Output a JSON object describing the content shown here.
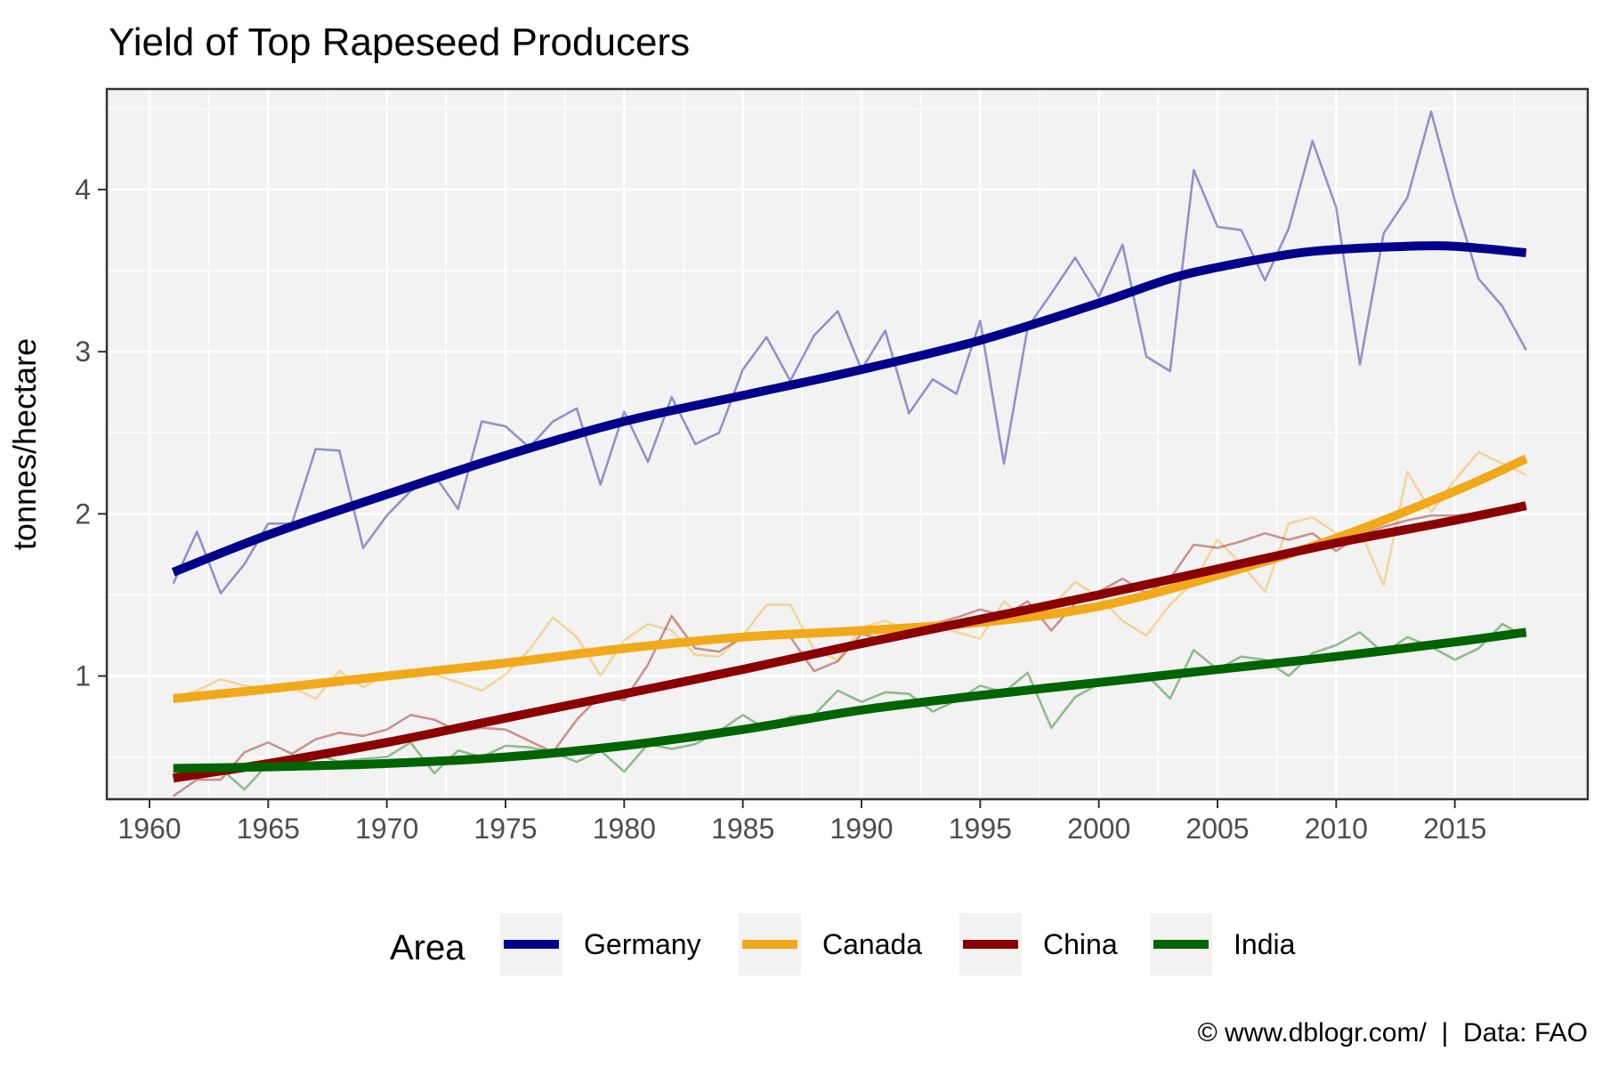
{
  "chart_data": {
    "type": "line",
    "title": "Yield of Top Rapeseed Producers",
    "ylabel": "tonnes/hectare",
    "xlabel": "",
    "xlim": [
      1958.2,
      2020.6
    ],
    "ylim": [
      0.24,
      4.62
    ],
    "x_ticks": [
      1960,
      1965,
      1970,
      1975,
      1980,
      1985,
      1990,
      1995,
      2000,
      2005,
      2010,
      2015
    ],
    "y_ticks": [
      1,
      2,
      3,
      4
    ],
    "grid": true,
    "legend": {
      "title": "Area",
      "position": "bottom"
    },
    "caption": "© www.dblogr.com/  |  Data: FAO",
    "series": [
      {
        "name": "Germany",
        "color": "#00008B",
        "raw": [
          [
            1961,
            1.57
          ],
          [
            1962,
            1.89
          ],
          [
            1963,
            1.51
          ],
          [
            1964,
            1.69
          ],
          [
            1965,
            1.94
          ],
          [
            1966,
            1.94
          ],
          [
            1967,
            2.4
          ],
          [
            1968,
            2.39
          ],
          [
            1969,
            1.79
          ],
          [
            1970,
            1.99
          ],
          [
            1971,
            2.14
          ],
          [
            1972,
            2.24
          ],
          [
            1973,
            2.03
          ],
          [
            1974,
            2.57
          ],
          [
            1975,
            2.54
          ],
          [
            1976,
            2.41
          ],
          [
            1977,
            2.57
          ],
          [
            1978,
            2.65
          ],
          [
            1979,
            2.18
          ],
          [
            1980,
            2.63
          ],
          [
            1981,
            2.32
          ],
          [
            1982,
            2.72
          ],
          [
            1983,
            2.43
          ],
          [
            1984,
            2.5
          ],
          [
            1985,
            2.89
          ],
          [
            1986,
            3.09
          ],
          [
            1987,
            2.82
          ],
          [
            1988,
            3.1
          ],
          [
            1989,
            3.25
          ],
          [
            1990,
            2.89
          ],
          [
            1991,
            3.13
          ],
          [
            1992,
            2.62
          ],
          [
            1993,
            2.83
          ],
          [
            1994,
            2.74
          ],
          [
            1995,
            3.19
          ],
          [
            1996,
            2.31
          ],
          [
            1997,
            3.15
          ],
          [
            1998,
            3.36
          ],
          [
            1999,
            3.58
          ],
          [
            2000,
            3.34
          ],
          [
            2001,
            3.66
          ],
          [
            2002,
            2.97
          ],
          [
            2003,
            2.88
          ],
          [
            2004,
            4.12
          ],
          [
            2005,
            3.77
          ],
          [
            2006,
            3.75
          ],
          [
            2007,
            3.44
          ],
          [
            2008,
            3.76
          ],
          [
            2009,
            4.3
          ],
          [
            2010,
            3.89
          ],
          [
            2011,
            2.92
          ],
          [
            2012,
            3.73
          ],
          [
            2013,
            3.95
          ],
          [
            2014,
            4.48
          ],
          [
            2015,
            3.93
          ],
          [
            2016,
            3.45
          ],
          [
            2017,
            3.28
          ],
          [
            2018,
            3.01
          ]
        ],
        "smooth": [
          [
            1961,
            1.64
          ],
          [
            1965,
            1.87
          ],
          [
            1970,
            2.12
          ],
          [
            1975,
            2.36
          ],
          [
            1980,
            2.57
          ],
          [
            1985,
            2.73
          ],
          [
            1990,
            2.89
          ],
          [
            1995,
            3.07
          ],
          [
            2000,
            3.3
          ],
          [
            2003,
            3.45
          ],
          [
            2005,
            3.52
          ],
          [
            2008,
            3.6
          ],
          [
            2010,
            3.63
          ],
          [
            2013,
            3.65
          ],
          [
            2015,
            3.65
          ],
          [
            2018,
            3.61
          ]
        ]
      },
      {
        "name": "Canada",
        "color": "#F1A91A",
        "raw": [
          [
            1961,
            0.86
          ],
          [
            1962,
            0.91
          ],
          [
            1963,
            0.98
          ],
          [
            1964,
            0.94
          ],
          [
            1965,
            0.92
          ],
          [
            1966,
            0.93
          ],
          [
            1967,
            0.86
          ],
          [
            1968,
            1.03
          ],
          [
            1969,
            0.93
          ],
          [
            1970,
            1.01
          ],
          [
            1971,
            1.03
          ],
          [
            1972,
            1.01
          ],
          [
            1973,
            0.96
          ],
          [
            1974,
            0.91
          ],
          [
            1975,
            1.01
          ],
          [
            1976,
            1.16
          ],
          [
            1977,
            1.36
          ],
          [
            1978,
            1.24
          ],
          [
            1979,
            1.0
          ],
          [
            1980,
            1.22
          ],
          [
            1981,
            1.32
          ],
          [
            1982,
            1.28
          ],
          [
            1983,
            1.13
          ],
          [
            1984,
            1.12
          ],
          [
            1985,
            1.25
          ],
          [
            1986,
            1.44
          ],
          [
            1987,
            1.44
          ],
          [
            1988,
            1.16
          ],
          [
            1989,
            1.1
          ],
          [
            1990,
            1.3
          ],
          [
            1991,
            1.34
          ],
          [
            1992,
            1.28
          ],
          [
            1993,
            1.32
          ],
          [
            1994,
            1.27
          ],
          [
            1995,
            1.23
          ],
          [
            1996,
            1.46
          ],
          [
            1997,
            1.34
          ],
          [
            1998,
            1.43
          ],
          [
            1999,
            1.58
          ],
          [
            2000,
            1.49
          ],
          [
            2001,
            1.34
          ],
          [
            2002,
            1.25
          ],
          [
            2003,
            1.44
          ],
          [
            2004,
            1.58
          ],
          [
            2005,
            1.84
          ],
          [
            2006,
            1.69
          ],
          [
            2007,
            1.52
          ],
          [
            2008,
            1.94
          ],
          [
            2009,
            1.98
          ],
          [
            2010,
            1.88
          ],
          [
            2011,
            1.9
          ],
          [
            2012,
            1.56
          ],
          [
            2013,
            2.26
          ],
          [
            2014,
            2.01
          ],
          [
            2015,
            2.21
          ],
          [
            2016,
            2.38
          ],
          [
            2017,
            2.31
          ],
          [
            2018,
            2.24
          ]
        ],
        "smooth": [
          [
            1961,
            0.86
          ],
          [
            1965,
            0.92
          ],
          [
            1970,
            1.0
          ],
          [
            1975,
            1.08
          ],
          [
            1980,
            1.17
          ],
          [
            1985,
            1.24
          ],
          [
            1990,
            1.28
          ],
          [
            1995,
            1.33
          ],
          [
            2000,
            1.43
          ],
          [
            2005,
            1.62
          ],
          [
            2010,
            1.85
          ],
          [
            2015,
            2.14
          ],
          [
            2018,
            2.34
          ]
        ]
      },
      {
        "name": "China",
        "color": "#8B0000",
        "raw": [
          [
            1961,
            0.26
          ],
          [
            1962,
            0.36
          ],
          [
            1963,
            0.36
          ],
          [
            1964,
            0.53
          ],
          [
            1965,
            0.59
          ],
          [
            1966,
            0.52
          ],
          [
            1967,
            0.61
          ],
          [
            1968,
            0.65
          ],
          [
            1969,
            0.63
          ],
          [
            1970,
            0.67
          ],
          [
            1971,
            0.76
          ],
          [
            1972,
            0.73
          ],
          [
            1973,
            0.66
          ],
          [
            1974,
            0.68
          ],
          [
            1975,
            0.67
          ],
          [
            1976,
            0.6
          ],
          [
            1977,
            0.53
          ],
          [
            1978,
            0.73
          ],
          [
            1979,
            0.88
          ],
          [
            1980,
            0.85
          ],
          [
            1981,
            1.07
          ],
          [
            1982,
            1.37
          ],
          [
            1983,
            1.17
          ],
          [
            1984,
            1.15
          ],
          [
            1985,
            1.24
          ],
          [
            1986,
            1.27
          ],
          [
            1987,
            1.24
          ],
          [
            1988,
            1.03
          ],
          [
            1989,
            1.09
          ],
          [
            1990,
            1.26
          ],
          [
            1991,
            1.22
          ],
          [
            1992,
            1.27
          ],
          [
            1993,
            1.32
          ],
          [
            1994,
            1.36
          ],
          [
            1995,
            1.41
          ],
          [
            1996,
            1.37
          ],
          [
            1997,
            1.46
          ],
          [
            1998,
            1.28
          ],
          [
            1999,
            1.45
          ],
          [
            2000,
            1.52
          ],
          [
            2001,
            1.6
          ],
          [
            2002,
            1.51
          ],
          [
            2003,
            1.6
          ],
          [
            2004,
            1.81
          ],
          [
            2005,
            1.79
          ],
          [
            2006,
            1.83
          ],
          [
            2007,
            1.88
          ],
          [
            2008,
            1.84
          ],
          [
            2009,
            1.88
          ],
          [
            2010,
            1.77
          ],
          [
            2011,
            1.87
          ],
          [
            2012,
            1.92
          ],
          [
            2013,
            1.96
          ],
          [
            2014,
            1.99
          ],
          [
            2015,
            1.99
          ],
          [
            2016,
            2.0
          ],
          [
            2017,
            2.03
          ],
          [
            2018,
            2.03
          ]
        ],
        "smooth": [
          [
            1961,
            0.37
          ],
          [
            1965,
            0.46
          ],
          [
            1970,
            0.59
          ],
          [
            1975,
            0.74
          ],
          [
            1980,
            0.89
          ],
          [
            1985,
            1.04
          ],
          [
            1990,
            1.2
          ],
          [
            1995,
            1.35
          ],
          [
            2000,
            1.5
          ],
          [
            2005,
            1.66
          ],
          [
            2010,
            1.82
          ],
          [
            2015,
            1.96
          ],
          [
            2018,
            2.05
          ]
        ]
      },
      {
        "name": "India",
        "color": "#006400",
        "raw": [
          [
            1961,
            0.42
          ],
          [
            1962,
            0.4
          ],
          [
            1963,
            0.43
          ],
          [
            1964,
            0.3
          ],
          [
            1965,
            0.46
          ],
          [
            1966,
            0.48
          ],
          [
            1967,
            0.52
          ],
          [
            1968,
            0.47
          ],
          [
            1969,
            0.49
          ],
          [
            1970,
            0.5
          ],
          [
            1971,
            0.59
          ],
          [
            1972,
            0.4
          ],
          [
            1973,
            0.54
          ],
          [
            1974,
            0.5
          ],
          [
            1975,
            0.57
          ],
          [
            1976,
            0.56
          ],
          [
            1977,
            0.53
          ],
          [
            1978,
            0.47
          ],
          [
            1979,
            0.54
          ],
          [
            1980,
            0.41
          ],
          [
            1981,
            0.58
          ],
          [
            1982,
            0.55
          ],
          [
            1983,
            0.58
          ],
          [
            1984,
            0.66
          ],
          [
            1985,
            0.76
          ],
          [
            1986,
            0.67
          ],
          [
            1987,
            0.75
          ],
          [
            1988,
            0.76
          ],
          [
            1989,
            0.91
          ],
          [
            1990,
            0.84
          ],
          [
            1991,
            0.9
          ],
          [
            1992,
            0.89
          ],
          [
            1993,
            0.78
          ],
          [
            1994,
            0.85
          ],
          [
            1995,
            0.94
          ],
          [
            1996,
            0.9
          ],
          [
            1997,
            1.02
          ],
          [
            1998,
            0.68
          ],
          [
            1999,
            0.87
          ],
          [
            2000,
            0.95
          ],
          [
            2001,
            0.98
          ],
          [
            2002,
            1.01
          ],
          [
            2003,
            0.86
          ],
          [
            2004,
            1.16
          ],
          [
            2005,
            1.04
          ],
          [
            2006,
            1.12
          ],
          [
            2007,
            1.1
          ],
          [
            2008,
            1.0
          ],
          [
            2009,
            1.14
          ],
          [
            2010,
            1.19
          ],
          [
            2011,
            1.27
          ],
          [
            2012,
            1.14
          ],
          [
            2013,
            1.24
          ],
          [
            2014,
            1.18
          ],
          [
            2015,
            1.1
          ],
          [
            2016,
            1.17
          ],
          [
            2017,
            1.32
          ],
          [
            2018,
            1.24
          ]
        ],
        "smooth": [
          [
            1961,
            0.43
          ],
          [
            1965,
            0.44
          ],
          [
            1970,
            0.46
          ],
          [
            1975,
            0.5
          ],
          [
            1980,
            0.57
          ],
          [
            1985,
            0.67
          ],
          [
            1990,
            0.79
          ],
          [
            1995,
            0.88
          ],
          [
            2000,
            0.96
          ],
          [
            2005,
            1.04
          ],
          [
            2010,
            1.12
          ],
          [
            2015,
            1.21
          ],
          [
            2018,
            1.27
          ]
        ]
      }
    ]
  }
}
